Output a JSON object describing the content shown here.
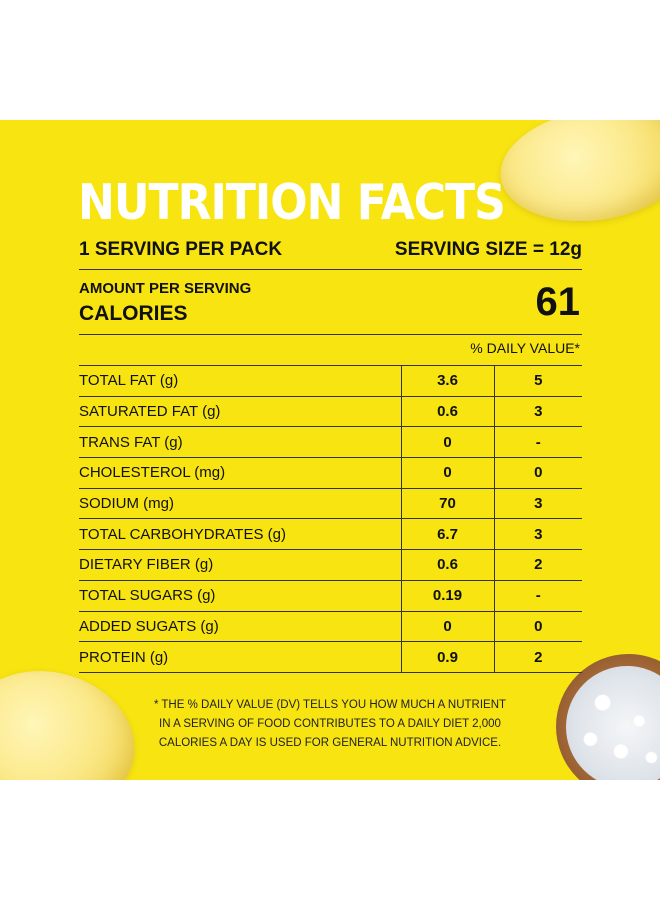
{
  "label": {
    "title": "NUTRITION FACTS",
    "servings_per_pack": "1 SERVING PER PACK",
    "serving_size": "SERVING SIZE = 12g",
    "amount_per_serving": "AMOUNT PER SERVING",
    "calories_label": "CALORIES",
    "calories_value": "61",
    "daily_value_header": "% DAILY VALUE*",
    "nutrients": [
      {
        "name": "TOTAL FAT (g)",
        "amount": "3.6",
        "dv": "5"
      },
      {
        "name": "SATURATED FAT (g)",
        "amount": "0.6",
        "dv": "3"
      },
      {
        "name": "TRANS FAT (g)",
        "amount": "0",
        "dv": "-"
      },
      {
        "name": "CHOLESTEROL (mg)",
        "amount": "0",
        "dv": "0"
      },
      {
        "name": "SODIUM (mg)",
        "amount": "70",
        "dv": "3"
      },
      {
        "name": "TOTAL CARBOHYDRATES (g)",
        "amount": "6.7",
        "dv": "3"
      },
      {
        "name": "DIETARY FIBER (g)",
        "amount": "0.6",
        "dv": "2"
      },
      {
        "name": "TOTAL SUGARS (g)",
        "amount": "0.19",
        "dv": "-"
      },
      {
        "name": "ADDED SUGATS (g)",
        "amount": "0",
        "dv": "0"
      },
      {
        "name": "PROTEIN (g)",
        "amount": "0.9",
        "dv": "2"
      }
    ],
    "footnote_lines": [
      "* THE % DAILY VALUE (DV) TELLS YOU HOW MUCH A NUTRIENT",
      "IN A SERVING OF FOOD CONTRIBUTES TO A DAILY DIET 2,000",
      "CALORIES A DAY IS USED FOR GENERAL NUTRITION ADVICE."
    ]
  },
  "colors": {
    "background": "#f7e411",
    "title": "#ffffff",
    "text": "#111111"
  },
  "decorations": {
    "top_right": "potato-chip-icon",
    "bottom_left": "potato-chip-icon",
    "bottom_right": "salt-bowl-icon"
  }
}
